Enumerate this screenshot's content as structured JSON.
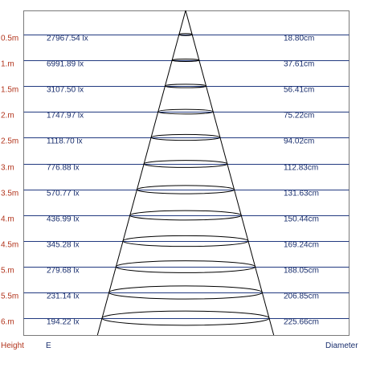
{
  "colors": {
    "frame": "#7a7a7a",
    "row_line": "#223a80",
    "height_text": "#b2341c",
    "value_text": "#1a2f6e",
    "beam": "#000000"
  },
  "footer": {
    "height_label": "Height",
    "e_label": "E",
    "diameter_label": "Diameter"
  },
  "rows": [
    {
      "height": "0.5m",
      "lux": "27967.54 lx",
      "diameter": "18.80cm"
    },
    {
      "height": "1.m",
      "lux": "6991.89 lx",
      "diameter": "37.61cm"
    },
    {
      "height": "1.5m",
      "lux": "3107.50 lx",
      "diameter": "56.41cm"
    },
    {
      "height": "2.m",
      "lux": "1747.97 lx",
      "diameter": "75.22cm"
    },
    {
      "height": "2.5m",
      "lux": "1118.70 lx",
      "diameter": "94.02cm"
    },
    {
      "height": "3.m",
      "lux": "776.88 lx",
      "diameter": "112.83cm"
    },
    {
      "height": "3.5m",
      "lux": "570.77 lx",
      "diameter": "131.63cm"
    },
    {
      "height": "4.m",
      "lux": "436.99 lx",
      "diameter": "150.44cm"
    },
    {
      "height": "4.5m",
      "lux": "345.28 lx",
      "diameter": "169.24cm"
    },
    {
      "height": "5.m",
      "lux": "279.68 lx",
      "diameter": "188.05cm"
    },
    {
      "height": "5.5m",
      "lux": "231.14 lx",
      "diameter": "206.85cm"
    },
    {
      "height": "6.m",
      "lux": "194.22 lx",
      "diameter": "225.66cm"
    }
  ]
}
